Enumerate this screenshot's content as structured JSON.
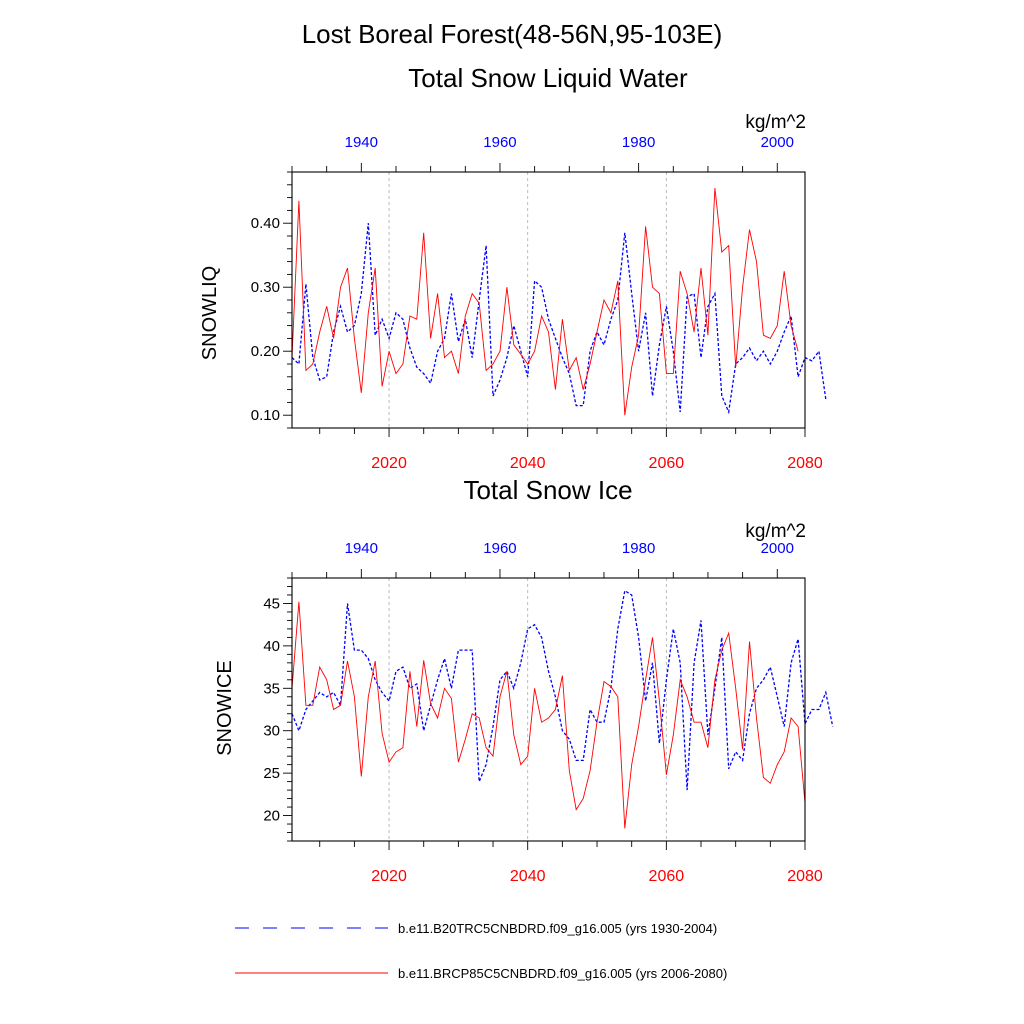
{
  "figure": {
    "main_title": "Lost Boreal Forest(48-56N,95-103E)",
    "colors": {
      "hist": "#0000ff",
      "future": "#ff0000",
      "axis": "#000000",
      "grid": "#aaaaaa"
    }
  },
  "legend": {
    "hist_label": "b.e11.B20TRC5CNBDRD.f09_g16.005 (yrs 1930-2004)",
    "future_label": "b.e11.BRCP85C5CNBDRD.f09_g16.005 (yrs 2006-2080)"
  },
  "chart_data": [
    {
      "type": "line",
      "title": "Total Snow Liquid Water",
      "ylabel": "SNOWLIQ",
      "units": "kg/m^2",
      "ylim": [
        0.08,
        0.48
      ],
      "yticks": [
        0.1,
        0.2,
        0.3,
        0.4
      ],
      "yticklabels": [
        "0.10",
        "0.20",
        "0.30",
        "0.40"
      ],
      "bottom_axis": {
        "range": [
          2006,
          2080
        ],
        "ticks": [
          2020,
          2040,
          2060,
          2080
        ],
        "labels": [
          "2020",
          "2040",
          "2060",
          "2080"
        ]
      },
      "top_axis": {
        "range": [
          1930,
          2004
        ],
        "ticks": [
          1940,
          1960,
          1980,
          2000
        ],
        "labels": [
          "1940",
          "1960",
          "1980",
          "2000"
        ]
      },
      "series": [
        {
          "name": "b.e11.B20TRC5CNBDRD.f09_g16.005 (yrs 1930-2004)",
          "x_start": 1930,
          "style": "dashed",
          "values": [
            0.19,
            0.18,
            0.305,
            0.19,
            0.155,
            0.16,
            0.23,
            0.27,
            0.23,
            0.24,
            0.29,
            0.4,
            0.225,
            0.25,
            0.22,
            0.26,
            0.25,
            0.205,
            0.175,
            0.165,
            0.15,
            0.2,
            0.22,
            0.29,
            0.215,
            0.25,
            0.19,
            0.28,
            0.365,
            0.13,
            0.155,
            0.19,
            0.24,
            0.2,
            0.16,
            0.31,
            0.3,
            0.25,
            0.22,
            0.19,
            0.165,
            0.115,
            0.115,
            0.2,
            0.23,
            0.21,
            0.25,
            0.28,
            0.385,
            0.29,
            0.2,
            0.26,
            0.13,
            0.21,
            0.27,
            0.2,
            0.105,
            0.285,
            0.29,
            0.19,
            0.27,
            0.29,
            0.13,
            0.105,
            0.18,
            0.19,
            0.205,
            0.185,
            0.2,
            0.18,
            0.2,
            0.23,
            0.255,
            0.16,
            0.19,
            0.185,
            0.2,
            0.125
          ]
        },
        {
          "name": "b.e11.BRCP85C5CNBDRD.f09_g16.005 (yrs 2006-2080)",
          "x_start": 2006,
          "style": "solid",
          "values": [
            0.19,
            0.435,
            0.17,
            0.18,
            0.23,
            0.27,
            0.22,
            0.3,
            0.33,
            0.22,
            0.135,
            0.26,
            0.33,
            0.145,
            0.2,
            0.165,
            0.18,
            0.255,
            0.25,
            0.385,
            0.22,
            0.29,
            0.19,
            0.2,
            0.165,
            0.255,
            0.29,
            0.275,
            0.17,
            0.18,
            0.2,
            0.3,
            0.21,
            0.195,
            0.18,
            0.2,
            0.255,
            0.23,
            0.14,
            0.25,
            0.17,
            0.19,
            0.14,
            0.18,
            0.23,
            0.28,
            0.26,
            0.31,
            0.1,
            0.175,
            0.225,
            0.395,
            0.3,
            0.29,
            0.165,
            0.165,
            0.325,
            0.29,
            0.23,
            0.33,
            0.225,
            0.455,
            0.355,
            0.365,
            0.175,
            0.3,
            0.39,
            0.34,
            0.225,
            0.22,
            0.24,
            0.325,
            0.24,
            0.2
          ]
        }
      ]
    },
    {
      "type": "line",
      "title": "Total Snow Ice",
      "ylabel": "SNOWICE",
      "units": "kg/m^2",
      "ylim": [
        17,
        48
      ],
      "yticks": [
        20,
        25,
        30,
        35,
        40,
        45
      ],
      "yticklabels": [
        "20",
        "25",
        "30",
        "35",
        "40",
        "45"
      ],
      "bottom_axis": {
        "range": [
          2006,
          2080
        ],
        "ticks": [
          2020,
          2040,
          2060,
          2080
        ],
        "labels": [
          "2020",
          "2040",
          "2060",
          "2080"
        ]
      },
      "top_axis": {
        "range": [
          1930,
          2004
        ],
        "ticks": [
          1940,
          1960,
          1980,
          2000
        ],
        "labels": [
          "1940",
          "1960",
          "1980",
          "2000"
        ]
      },
      "series": [
        {
          "name": "b.e11.B20TRC5CNBDRD.f09_g16.005 (yrs 1930-2004)",
          "x_start": 1930,
          "style": "dashed",
          "values": [
            32,
            30,
            32.5,
            33.5,
            34.5,
            34,
            34.5,
            33,
            45,
            39.5,
            39.5,
            38.5,
            36,
            34.5,
            33.5,
            37,
            37.5,
            35,
            35.5,
            30,
            33,
            36,
            38.5,
            35,
            39.5,
            39.5,
            39.5,
            24,
            26,
            30.5,
            36,
            37,
            35,
            38,
            42,
            42.5,
            41,
            37,
            34,
            30,
            29,
            26.5,
            26.5,
            32.5,
            31,
            31,
            35,
            42,
            46.5,
            46,
            41,
            33.5,
            38,
            28.5,
            36,
            42,
            38,
            23,
            38,
            43,
            29.5,
            35,
            41,
            25.5,
            27.5,
            26.5,
            32,
            35,
            36,
            37.5,
            34,
            30.5,
            38,
            40.8,
            30.8,
            32.5,
            32.5,
            34.5,
            30.5
          ]
        },
        {
          "name": "b.e11.BRCP85C5CNBDRD.f09_g16.005 (yrs 2006-2080)",
          "x_start": 2006,
          "style": "solid",
          "values": [
            35,
            45.2,
            33,
            33,
            37.5,
            36,
            32.5,
            33,
            38.2,
            34,
            24.6,
            34,
            38.2,
            29.7,
            26.3,
            27.5,
            28,
            37,
            30.5,
            38.3,
            33.2,
            31.5,
            35,
            33.8,
            26.3,
            29,
            32,
            31.5,
            28,
            27,
            34,
            37,
            29.5,
            26,
            27,
            35,
            31,
            31.5,
            32.5,
            36.5,
            25.3,
            20.7,
            22,
            25.3,
            31,
            35.8,
            35.2,
            34,
            18.5,
            26,
            30.5,
            36,
            41,
            33.5,
            24.8,
            29.5,
            36,
            34,
            31,
            31,
            28,
            36,
            39.5,
            41.5,
            35,
            27.8,
            40.5,
            31.5,
            24.5,
            23.8,
            26,
            27.5,
            31.5,
            30.5,
            21.5
          ]
        }
      ]
    }
  ]
}
